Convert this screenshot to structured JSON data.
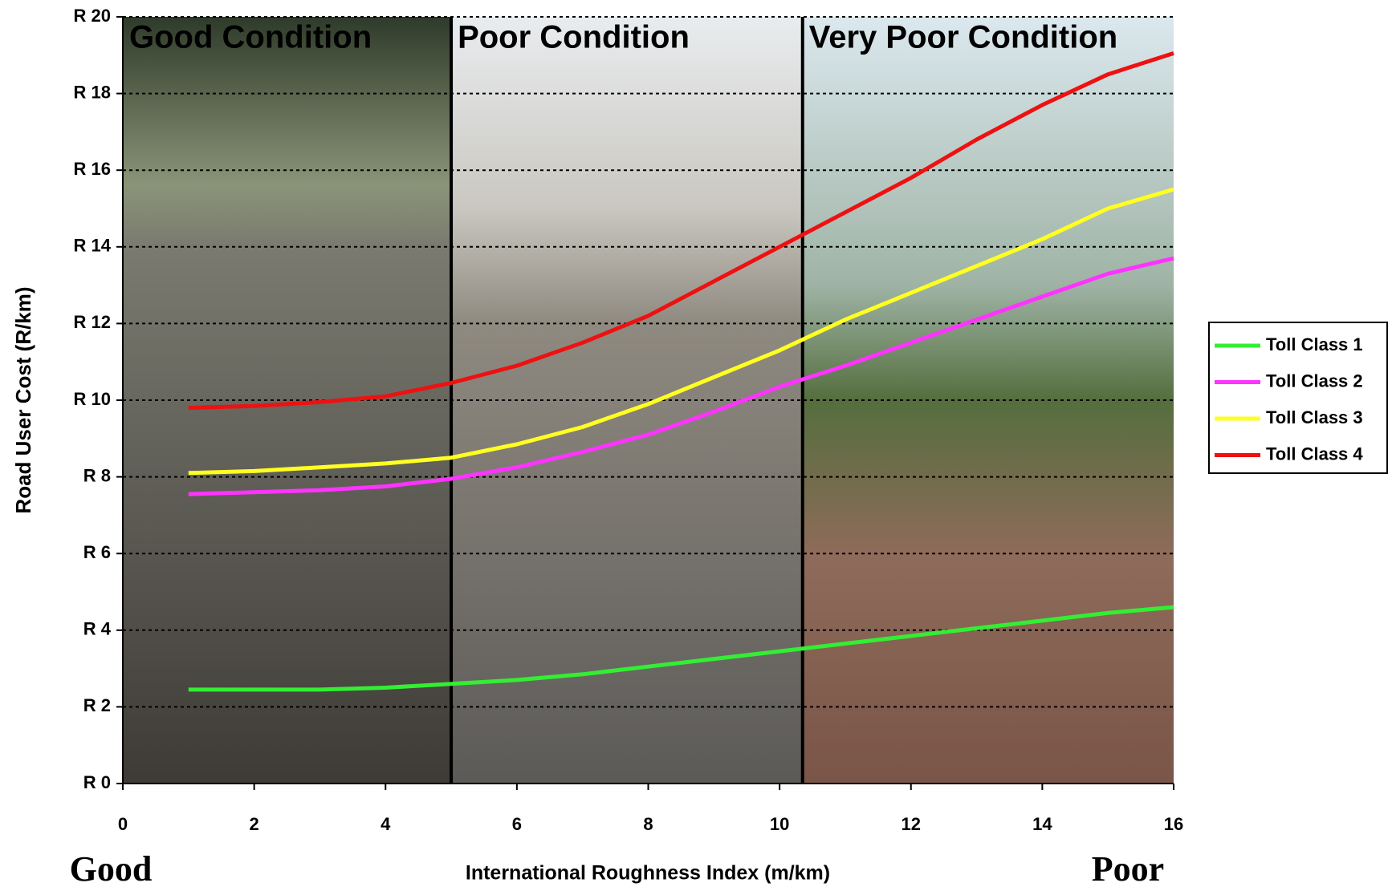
{
  "chart_data": {
    "type": "line",
    "ylabel": "Road User Cost (R/km)",
    "xlabel": "International Roughness Index (m/km)",
    "annotations": [
      "Good",
      "Poor"
    ],
    "regions": [
      {
        "label": "Good Condition",
        "color": "#33cc33",
        "from": 0,
        "to": 5
      },
      {
        "label": "Poor Condition",
        "color": "#f7996a",
        "from": 5,
        "to": 10.35
      },
      {
        "label": "Very Poor Condition",
        "color": "#ee1111",
        "from": 10.35,
        "to": 16
      }
    ],
    "x": [
      1,
      2,
      3,
      4,
      5,
      6,
      7,
      8,
      9,
      10,
      11,
      12,
      13,
      14,
      15,
      16
    ],
    "series": [
      {
        "name": "Toll Class 1",
        "color": "#33ee33",
        "values": [
          2.45,
          2.45,
          2.45,
          2.5,
          2.6,
          2.7,
          2.85,
          3.05,
          3.25,
          3.45,
          3.65,
          3.85,
          4.05,
          4.25,
          4.45,
          4.6
        ]
      },
      {
        "name": "Toll Class 2",
        "color": "#ff33ff",
        "values": [
          7.55,
          7.6,
          7.65,
          7.75,
          7.95,
          8.25,
          8.65,
          9.1,
          9.7,
          10.35,
          10.9,
          11.5,
          12.1,
          12.7,
          13.3,
          13.7
        ]
      },
      {
        "name": "Toll Class 3",
        "color": "#ffff22",
        "values": [
          8.1,
          8.15,
          8.25,
          8.35,
          8.5,
          8.85,
          9.3,
          9.9,
          10.6,
          11.3,
          12.1,
          12.8,
          13.5,
          14.2,
          15.0,
          15.5
        ]
      },
      {
        "name": "Toll Class 4",
        "color": "#ee1111",
        "values": [
          9.8,
          9.85,
          9.95,
          10.1,
          10.45,
          10.9,
          11.5,
          12.2,
          13.1,
          14.0,
          14.9,
          15.8,
          16.8,
          17.7,
          18.5,
          19.05
        ]
      }
    ],
    "xlim": [
      0,
      16
    ],
    "xticks": [
      0,
      2,
      4,
      6,
      8,
      10,
      12,
      14,
      16
    ],
    "ylim": [
      0,
      20
    ],
    "yticks": [
      {
        "value": 0,
        "label": "R 0"
      },
      {
        "value": 2,
        "label": "R 2"
      },
      {
        "value": 4,
        "label": "R 4"
      },
      {
        "value": 6,
        "label": "R 6"
      },
      {
        "value": 8,
        "label": "R 8"
      },
      {
        "value": 10,
        "label": "R 10"
      },
      {
        "value": 12,
        "label": "R 12"
      },
      {
        "value": 14,
        "label": "R 14"
      },
      {
        "value": 16,
        "label": "R 16"
      },
      {
        "value": 18,
        "label": "R 18"
      },
      {
        "value": 20,
        "label": "R 20"
      }
    ],
    "grid": true,
    "legend": "right"
  }
}
